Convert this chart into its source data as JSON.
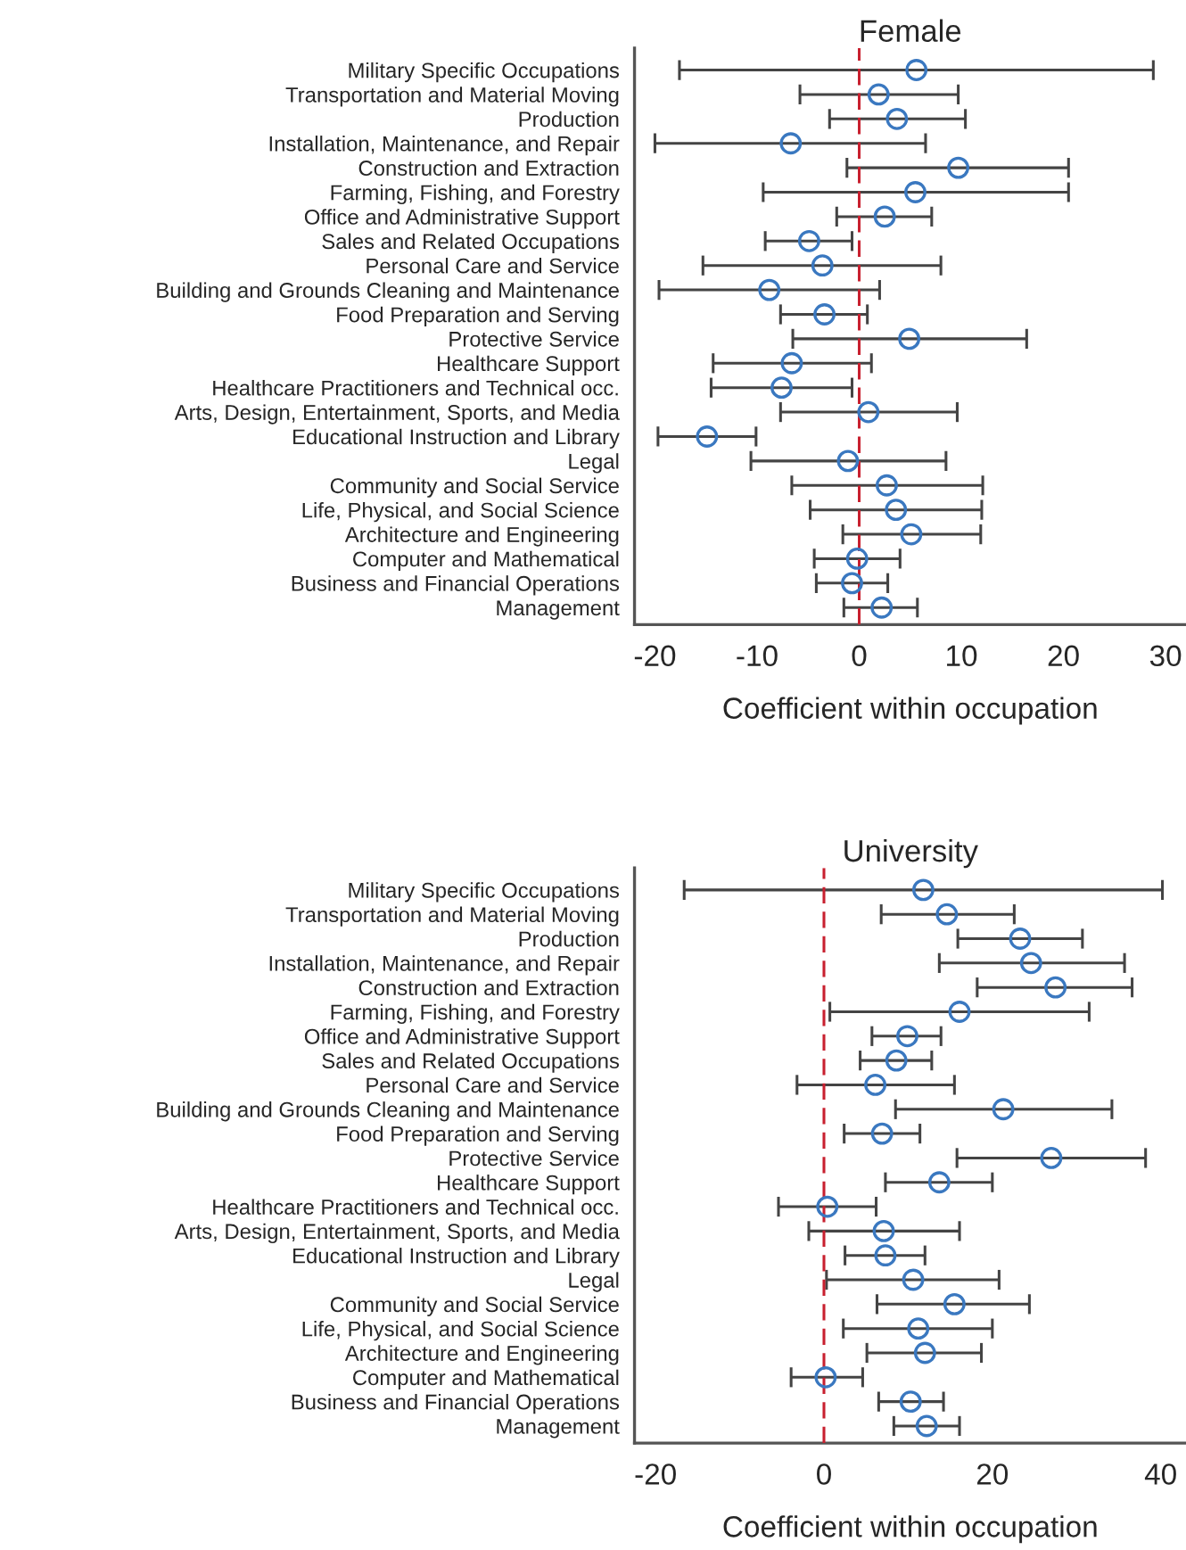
{
  "chart_data": [
    {
      "type": "scatter",
      "orientation": "horizontal",
      "title": "Female",
      "xlabel": "Coefficient within occupation",
      "categories": [
        "Military Specific Occupations",
        "Transportation and Material Moving",
        "Production",
        "Installation, Maintenance, and Repair",
        "Construction and Extraction",
        "Farming, Fishing, and Forestry",
        "Office and Administrative Support",
        "Sales and Related Occupations",
        "Personal Care and Service",
        "Building and Grounds Cleaning and Maintenance",
        "Food Preparation and Serving",
        "Protective Service",
        "Healthcare Support",
        "Healthcare Practitioners and Technical occ.",
        "Arts, Design, Entertainment, Sports, and Media",
        "Educational Instruction and Library",
        "Legal",
        "Community and Social Service",
        "Life, Physical, and Social Science",
        "Architecture and Engineering",
        "Computer and Mathematical",
        "Business and Financial Operations",
        "Management"
      ],
      "series": [
        {
          "color": "#3a78c0",
          "values": [
            5.6,
            1.9,
            3.7,
            -6.7,
            9.7,
            5.5,
            2.5,
            -4.9,
            -3.6,
            -8.8,
            -3.4,
            4.9,
            -6.6,
            -7.6,
            0.9,
            -14.9,
            -1.1,
            2.7,
            3.6,
            5.1,
            -0.2,
            -0.7,
            2.2
          ],
          "errors": [
            [
              -17.6,
              28.8
            ],
            [
              -5.8,
              9.7
            ],
            [
              -2.9,
              10.4
            ],
            [
              -20.0,
              6.5
            ],
            [
              -1.2,
              20.5
            ],
            [
              -9.4,
              20.5
            ],
            [
              -2.2,
              7.1
            ],
            [
              -9.2,
              -0.7
            ],
            [
              -15.3,
              8.0
            ],
            [
              -19.6,
              2.0
            ],
            [
              -7.7,
              0.8
            ],
            [
              -6.5,
              16.4
            ],
            [
              -14.3,
              1.2
            ],
            [
              -14.5,
              -0.7
            ],
            [
              -7.7,
              9.6
            ],
            [
              -19.7,
              -10.1
            ],
            [
              -10.6,
              8.5
            ],
            [
              -6.6,
              12.1
            ],
            [
              -4.8,
              12.0
            ],
            [
              -1.6,
              11.9
            ],
            [
              -4.4,
              4.0
            ],
            [
              -4.2,
              2.8
            ],
            [
              -1.5,
              5.7
            ]
          ]
        }
      ],
      "xlim": [
        -22,
        32
      ],
      "xticks": [
        -20,
        -10,
        0,
        10,
        20,
        30
      ],
      "marker": "circle",
      "grid": false,
      "legend": false,
      "ref_lines": [
        {
          "axis": "x",
          "value": 0,
          "color": "#c8202f",
          "line_style": "dashed"
        }
      ]
    },
    {
      "type": "scatter",
      "orientation": "horizontal",
      "title": "University",
      "xlabel": "Coefficient within occupation",
      "categories": [
        "Military Specific Occupations",
        "Transportation and Material Moving",
        "Production",
        "Installation, Maintenance, and Repair",
        "Construction and Extraction",
        "Farming, Fishing, and Forestry",
        "Office and Administrative Support",
        "Sales and Related Occupations",
        "Personal Care and Service",
        "Building and Grounds Cleaning and Maintenance",
        "Food Preparation and Serving",
        "Protective Service",
        "Healthcare Support",
        "Healthcare Practitioners and Technical occ.",
        "Arts, Design, Entertainment, Sports, and Media",
        "Educational Instruction and Library",
        "Legal",
        "Community and Social Service",
        "Life, Physical, and Social Science",
        "Architecture and Engineering",
        "Computer and Mathematical",
        "Business and Financial Operations",
        "Management"
      ],
      "series": [
        {
          "color": "#3a78c0",
          "values": [
            11.8,
            14.6,
            23.3,
            24.6,
            27.5,
            16.1,
            9.9,
            8.6,
            6.1,
            21.3,
            6.9,
            27.0,
            13.7,
            0.4,
            7.1,
            7.3,
            10.6,
            15.5,
            11.2,
            12.0,
            0.2,
            10.3,
            12.2
          ],
          "errors": [
            [
              -16.6,
              40.2
            ],
            [
              6.8,
              22.6
            ],
            [
              15.9,
              30.7
            ],
            [
              13.7,
              35.7
            ],
            [
              18.2,
              36.6
            ],
            [
              0.7,
              31.5
            ],
            [
              5.7,
              13.9
            ],
            [
              4.3,
              12.8
            ],
            [
              -3.2,
              15.5
            ],
            [
              8.5,
              34.2
            ],
            [
              2.4,
              11.4
            ],
            [
              15.8,
              38.2
            ],
            [
              7.3,
              20.0
            ],
            [
              -5.4,
              6.2
            ],
            [
              -1.8,
              16.1
            ],
            [
              2.5,
              12.0
            ],
            [
              0.3,
              20.8
            ],
            [
              6.3,
              24.4
            ],
            [
              2.3,
              20.0
            ],
            [
              5.1,
              18.7
            ],
            [
              -3.9,
              4.6
            ],
            [
              6.5,
              14.2
            ],
            [
              8.3,
              16.1
            ]
          ]
        }
      ],
      "xlim": [
        -22.5,
        43
      ],
      "xticks": [
        -20,
        0,
        20,
        40
      ],
      "marker": "circle",
      "grid": false,
      "legend": false,
      "ref_lines": [
        {
          "axis": "x",
          "value": 0,
          "color": "#c8202f",
          "line_style": "dashed"
        }
      ]
    }
  ]
}
